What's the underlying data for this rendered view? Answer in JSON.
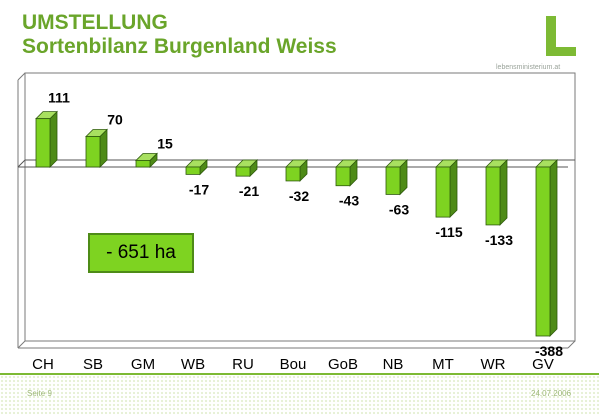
{
  "header": {
    "title_line1": "UMSTELLUNG",
    "title_line2": "Sortenbilanz Burgenland Weiss",
    "logo_url_text": "lebensministerium.at"
  },
  "footer": {
    "left": "Seite 9",
    "right": "24.07.2006"
  },
  "colors": {
    "accent": "#6aa52a",
    "bar_front": "#7ed321",
    "bar_top": "#a8e060",
    "bar_side": "#4e8b17"
  },
  "chart_data": {
    "type": "bar",
    "title": "",
    "xlabel": "",
    "ylabel": "",
    "categories": [
      "CH",
      "SB",
      "GM",
      "WB",
      "RU",
      "Bou",
      "GoB",
      "NB",
      "MT",
      "WR",
      "GV"
    ],
    "values": [
      111,
      70,
      15,
      -17,
      -21,
      -32,
      -43,
      -63,
      -115,
      -133,
      -388
    ],
    "ylim": [
      -400,
      130
    ],
    "grid": false,
    "annotation": "- 651 ha"
  }
}
